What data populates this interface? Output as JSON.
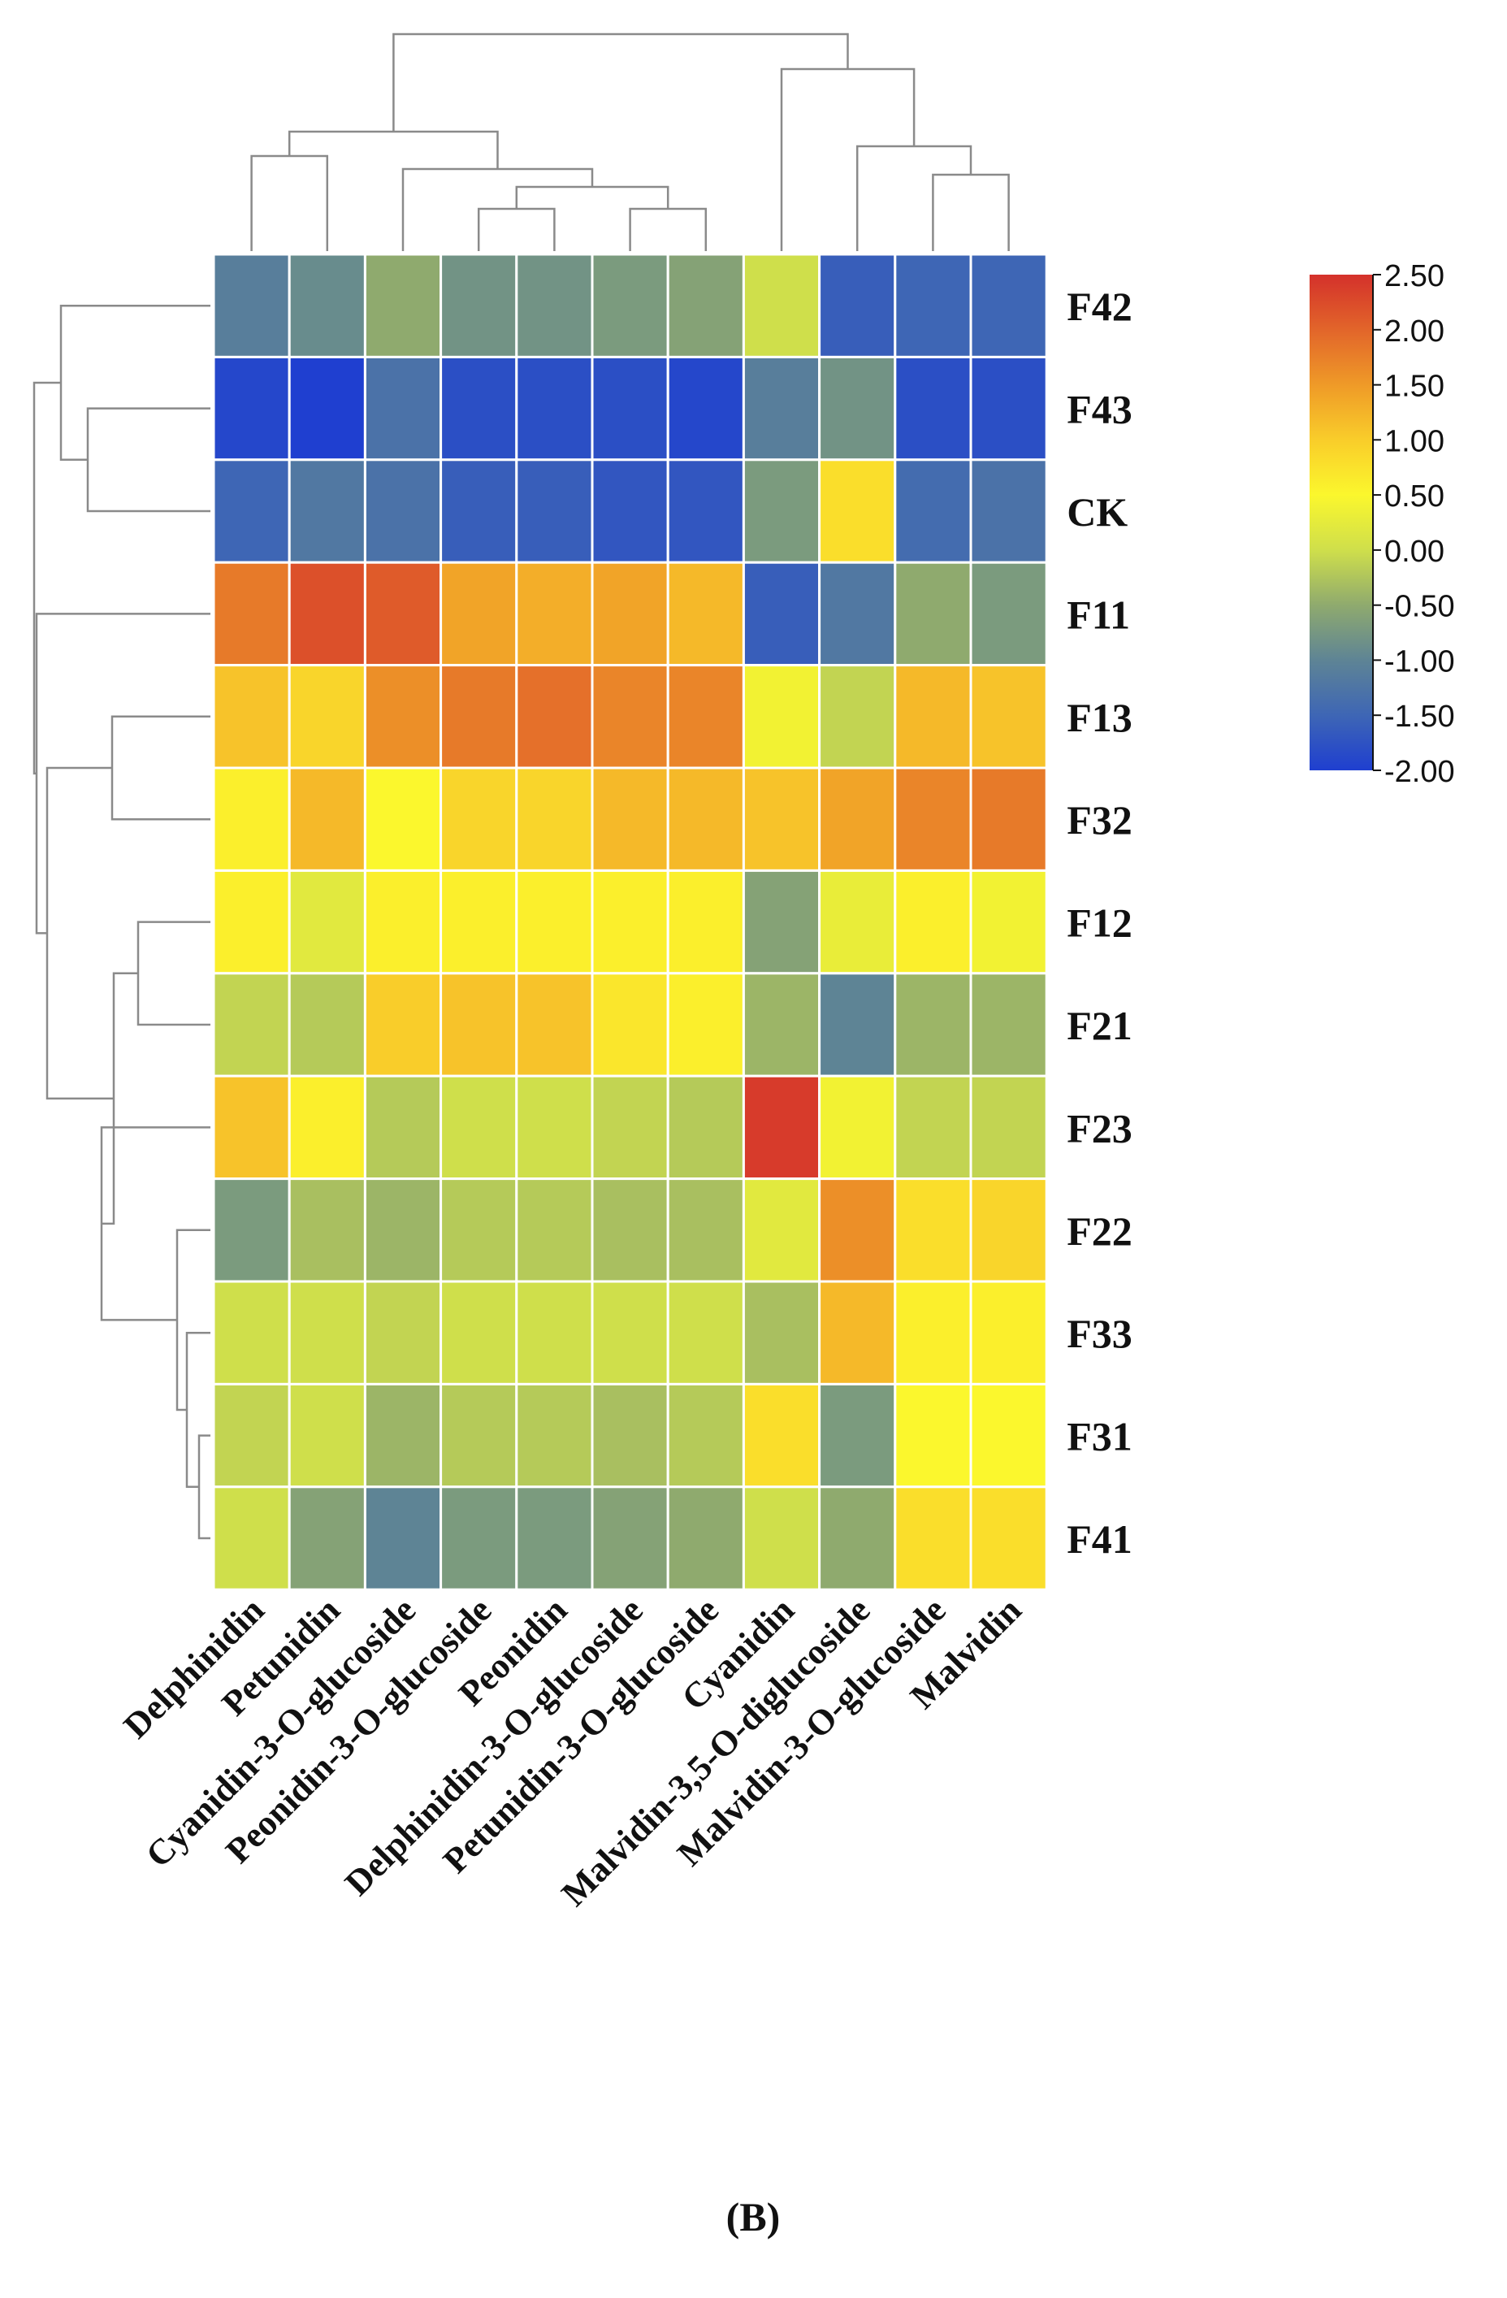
{
  "chart_data": {
    "type": "heatmap",
    "title": "",
    "panel_label": "(B)",
    "columns": [
      "Delphinidin",
      "Petunidin",
      "Cyanidin-3-O-glucoside",
      "Peonidin-3-O-glucoside",
      "Peonidin",
      "Delphinidin-3-O-glucoside",
      "Petunidin-3-O-glucoside",
      "Cyanidin",
      "Malvidin-3,5-O-diglucoside",
      "Malvidin-3-O-glucoside",
      "Malvidin"
    ],
    "rows": [
      "F42",
      "F43",
      "CK",
      "F11",
      "F13",
      "F32",
      "F12",
      "F21",
      "F23",
      "F22",
      "F33",
      "F31",
      "F41"
    ],
    "values": [
      [
        -1.1,
        -0.9,
        -0.5,
        -0.8,
        -0.8,
        -0.7,
        -0.6,
        0.0,
        -1.6,
        -1.5,
        -1.5
      ],
      [
        -1.9,
        -2.0,
        -1.3,
        -1.8,
        -1.8,
        -1.8,
        -1.9,
        -1.1,
        -0.8,
        -1.8,
        -1.8
      ],
      [
        -1.5,
        -1.2,
        -1.3,
        -1.6,
        -1.6,
        -1.7,
        -1.7,
        -0.7,
        0.8,
        -1.4,
        -1.3
      ],
      [
        1.8,
        2.2,
        2.1,
        1.4,
        1.3,
        1.4,
        1.2,
        -1.6,
        -1.2,
        -0.5,
        -0.7
      ],
      [
        1.1,
        0.9,
        1.6,
        1.8,
        1.9,
        1.7,
        1.7,
        0.4,
        -0.1,
        1.2,
        1.1
      ],
      [
        0.6,
        1.2,
        0.5,
        0.9,
        0.9,
        1.2,
        1.2,
        1.1,
        1.4,
        1.7,
        1.8
      ],
      [
        0.6,
        0.2,
        0.6,
        0.6,
        0.6,
        0.6,
        0.6,
        -0.6,
        0.3,
        0.6,
        0.4
      ],
      [
        -0.1,
        -0.2,
        1.0,
        1.1,
        1.1,
        0.7,
        0.6,
        -0.4,
        -1.0,
        -0.4,
        -0.4
      ],
      [
        1.1,
        0.6,
        -0.2,
        0.0,
        0.0,
        -0.1,
        -0.2,
        2.4,
        0.4,
        -0.1,
        -0.1
      ],
      [
        -0.7,
        -0.3,
        -0.4,
        -0.2,
        -0.2,
        -0.3,
        -0.3,
        0.2,
        1.6,
        0.8,
        0.9
      ],
      [
        0.0,
        0.0,
        -0.1,
        0.0,
        0.0,
        0.0,
        0.0,
        -0.3,
        1.2,
        0.6,
        0.6
      ],
      [
        -0.1,
        0.0,
        -0.4,
        -0.2,
        -0.2,
        -0.3,
        -0.2,
        0.8,
        -0.7,
        0.5,
        0.5
      ],
      [
        0.0,
        -0.6,
        -1.0,
        -0.7,
        -0.7,
        -0.6,
        -0.5,
        0.0,
        -0.5,
        0.8,
        0.8
      ]
    ],
    "color_scale": {
      "min": -2.0,
      "max": 2.5,
      "ticks": [
        "2.50",
        "2.00",
        "1.50",
        "1.00",
        "0.50",
        "0.00",
        "-0.50",
        "-1.00",
        "-1.50",
        "-2.00"
      ],
      "stops": [
        {
          "value": -2.0,
          "color": "#1f3fd0"
        },
        {
          "value": -1.5,
          "color": "#3e66b5"
        },
        {
          "value": -1.0,
          "color": "#5e8495"
        },
        {
          "value": -0.5,
          "color": "#8faa6e"
        },
        {
          "value": 0.0,
          "color": "#cfdf4b"
        },
        {
          "value": 0.5,
          "color": "#fbf72d"
        },
        {
          "value": 1.0,
          "color": "#f9cd2a"
        },
        {
          "value": 1.5,
          "color": "#ef9a28"
        },
        {
          "value": 2.0,
          "color": "#e2652a"
        },
        {
          "value": 2.5,
          "color": "#d4312b"
        }
      ]
    },
    "column_dendrogram": [
      [
        5,
        6
      ],
      [
        3,
        4
      ],
      [
        12,
        11
      ],
      [
        2,
        13
      ],
      [
        0,
        1
      ],
      [
        15,
        14
      ],
      [
        9,
        10
      ],
      [
        8,
        17
      ],
      [
        7,
        18
      ],
      [
        16,
        19
      ]
    ],
    "row_dendrogram": [
      [
        1,
        2
      ],
      [
        0,
        13
      ],
      [
        11,
        12
      ],
      [
        10,
        15
      ],
      [
        9,
        16
      ],
      [
        6,
        7
      ],
      [
        8,
        17
      ],
      [
        18,
        19
      ],
      [
        4,
        5
      ],
      [
        21,
        20
      ],
      [
        3,
        22
      ],
      [
        23,
        14
      ]
    ],
    "grid": false,
    "legend": "right"
  }
}
